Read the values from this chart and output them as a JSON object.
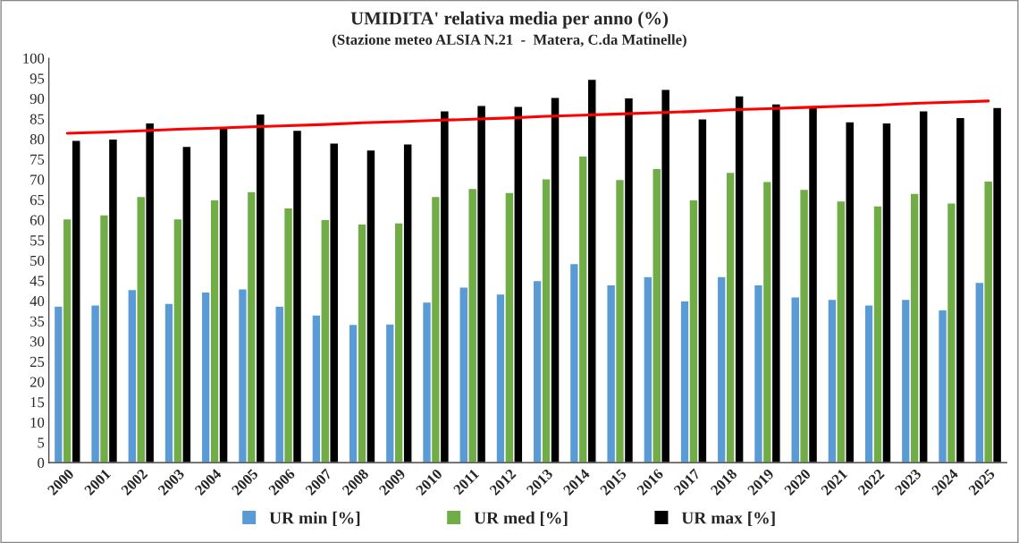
{
  "chart_data": {
    "type": "bar",
    "title": "UMIDITA' relativa media per anno (%)",
    "subtitle": "(Stazione meteo ALSIA N.21  -  Matera, C.da Matinelle)",
    "categories": [
      "2000",
      "2001",
      "2002",
      "2003",
      "2004",
      "2005",
      "2006",
      "2007",
      "2008",
      "2009",
      "2010",
      "2011",
      "2012",
      "2013",
      "2014",
      "2015",
      "2016",
      "2017",
      "2018",
      "2019",
      "2020",
      "2021",
      "2022",
      "2023",
      "2024",
      "2025"
    ],
    "series": [
      {
        "name": "UR min [%]",
        "color": "#5b9bd5",
        "values": [
          38.7,
          39,
          42.8,
          39.4,
          42.2,
          43,
          38.7,
          36.5,
          34.2,
          34.3,
          39.7,
          43.4,
          41.7,
          45,
          49.2,
          44,
          46,
          40,
          46,
          44,
          41,
          40.4,
          39,
          40.4,
          37.8,
          44.6
        ]
      },
      {
        "name": "UR med [%]",
        "color": "#70ad47",
        "values": [
          60.3,
          61.3,
          65.8,
          60.3,
          65,
          67,
          63,
          60.1,
          59,
          59.3,
          65.8,
          67.8,
          66.8,
          70.2,
          75.8,
          70,
          72.7,
          65,
          71.8,
          69.5,
          67.6,
          64.7,
          63.5,
          66.6,
          64.2,
          69.6
        ]
      },
      {
        "name": "UR max [%]",
        "color": "#000000",
        "values": [
          79.7,
          80,
          84,
          78.2,
          82.8,
          86.2,
          82.2,
          79,
          77.3,
          78.8,
          87,
          88.3,
          88.1,
          90.3,
          94.8,
          90.2,
          92.3,
          85,
          90.7,
          88.7,
          87.8,
          84.3,
          84,
          87,
          85.3,
          87.8
        ]
      },
      {
        "type": "line",
        "color": "#ff0000",
        "values": [
          81.4,
          81.7,
          82.0,
          82.4,
          82.7,
          83.0,
          83.3,
          83.6,
          84.0,
          84.3,
          84.6,
          84.9,
          85.2,
          85.6,
          85.9,
          86.2,
          86.5,
          86.8,
          87.2,
          87.5,
          87.8,
          88.1,
          88.4,
          88.8,
          89.1,
          89.4
        ]
      }
    ],
    "ylim": [
      0,
      100
    ],
    "yticks": [
      0,
      5,
      10,
      15,
      20,
      25,
      30,
      35,
      40,
      45,
      50,
      55,
      60,
      65,
      70,
      75,
      80,
      85,
      90,
      95,
      100
    ],
    "grid": false,
    "legend": "bottom"
  }
}
